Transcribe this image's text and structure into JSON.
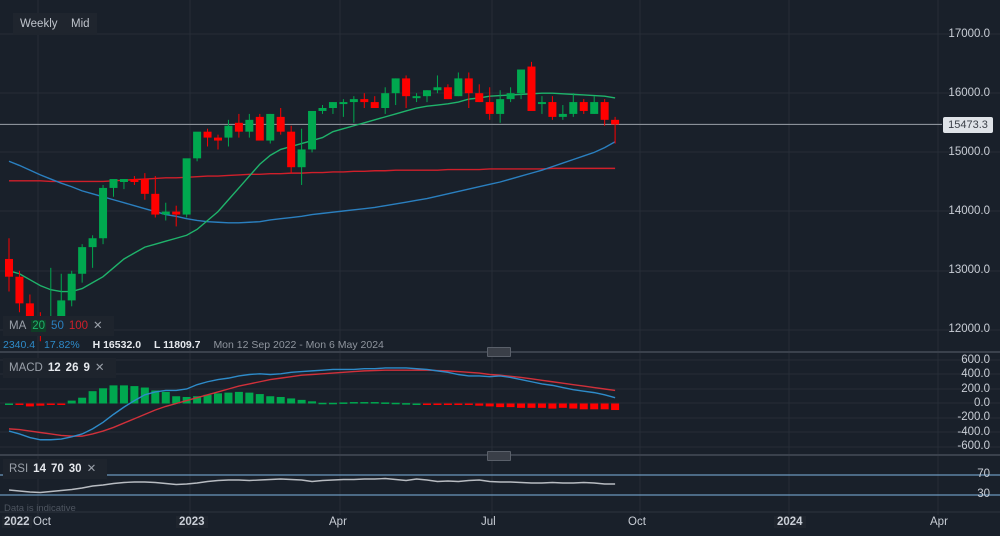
{
  "toolbar": {
    "interval": "Weekly",
    "price_type": "Mid"
  },
  "ma_legend": {
    "label": "MA",
    "p1": "20",
    "p2": "50",
    "p3": "100",
    "close": "✕"
  },
  "info_bar": {
    "change": "2340.4",
    "change_pct": "17.82%",
    "high": "H 16532.0",
    "low": "L 11809.7",
    "range": "Mon 12 Sep 2022 - Mon 6 May 2024"
  },
  "macd_legend": {
    "label": "MACD",
    "fast": "12",
    "slow": "26",
    "signal": "9",
    "close": "✕"
  },
  "rsi_legend": {
    "label": "RSI",
    "period": "14",
    "upper": "70",
    "lower": "30",
    "close": "✕"
  },
  "disclaimer": "Data is indicative",
  "last_price": "15473.3",
  "price_axis": [
    "17000.0",
    "16000.0",
    "15000.0",
    "14000.0",
    "13000.0",
    "12000.0"
  ],
  "macd_axis": [
    "600.0",
    "400.0",
    "200.0",
    "0.0",
    "-200.0",
    "-400.0",
    "-600.0"
  ],
  "rsi_axis": [
    "70",
    "30"
  ],
  "time_axis": [
    "2022",
    "Oct",
    "2023",
    "Apr",
    "Jul",
    "Oct",
    "2024",
    "Apr"
  ],
  "colors": {
    "bg": "#19202a",
    "up": "#00a84f",
    "down": "#ff0000",
    "ma20": "#1fb36b",
    "ma50": "#2a7fbf",
    "ma100": "#d01f2a",
    "macd": "#2e8bc9",
    "signal": "#d0303a",
    "rsi": "#b8bcc2",
    "rsi_band": "#7fb3e0"
  },
  "chart_data": {
    "type": "candlestick",
    "title": "Weekly Mid",
    "period": "Mon 12 Sep 2022 - Mon 6 May 2024",
    "ylim": [
      11800,
      17300
    ],
    "candles_ohlc": [
      [
        13200,
        13550,
        12650,
        12900
      ],
      [
        12900,
        13000,
        12300,
        12450
      ],
      [
        12450,
        12600,
        11950,
        12150
      ],
      [
        12150,
        12300,
        11810,
        12000
      ],
      [
        12000,
        13050,
        11900,
        12200
      ],
      [
        12200,
        12950,
        12000,
        12500
      ],
      [
        12500,
        13000,
        12400,
        12950
      ],
      [
        12950,
        13450,
        12800,
        13400
      ],
      [
        13400,
        13600,
        13050,
        13550
      ],
      [
        13550,
        14450,
        13450,
        14400
      ],
      [
        14400,
        14500,
        14250,
        14550
      ],
      [
        14500,
        14550,
        14380,
        14550
      ],
      [
        14550,
        14600,
        14450,
        14500
      ],
      [
        14550,
        14650,
        14200,
        14300
      ],
      [
        14300,
        14600,
        13900,
        13950
      ],
      [
        13950,
        14150,
        13850,
        14000
      ],
      [
        14000,
        14100,
        13750,
        13950
      ],
      [
        13950,
        14850,
        13900,
        14900
      ],
      [
        14900,
        15200,
        14850,
        15350
      ],
      [
        15350,
        15400,
        15100,
        15250
      ],
      [
        15250,
        15300,
        15050,
        15200
      ],
      [
        15250,
        15550,
        15100,
        15450
      ],
      [
        15500,
        15650,
        15250,
        15350
      ],
      [
        15350,
        15650,
        15250,
        15550
      ],
      [
        15600,
        15650,
        15300,
        15200
      ],
      [
        15200,
        15650,
        15150,
        15650
      ],
      [
        15600,
        15750,
        15300,
        15350
      ],
      [
        15350,
        15450,
        14650,
        14750
      ],
      [
        14750,
        15400,
        14450,
        15050
      ],
      [
        15050,
        15600,
        15000,
        15700
      ],
      [
        15700,
        15800,
        15650,
        15750
      ],
      [
        15750,
        15850,
        15650,
        15850
      ],
      [
        15850,
        15900,
        15600,
        15850
      ],
      [
        15850,
        15950,
        15500,
        15900
      ],
      [
        15900,
        16000,
        15750,
        15850
      ],
      [
        15850,
        15950,
        15750,
        15750
      ],
      [
        15750,
        16100,
        15650,
        16000
      ],
      [
        16000,
        16250,
        15800,
        16250
      ],
      [
        16250,
        16300,
        15750,
        15950
      ],
      [
        15950,
        16000,
        15850,
        15950
      ],
      [
        15950,
        16050,
        15850,
        16050
      ],
      [
        16050,
        16300,
        16000,
        16100
      ],
      [
        16100,
        16150,
        15900,
        15900
      ],
      [
        15950,
        16350,
        15950,
        16250
      ],
      [
        16250,
        16350,
        15750,
        16000
      ],
      [
        16000,
        16150,
        15850,
        15850
      ],
      [
        15850,
        16100,
        15550,
        15650
      ],
      [
        15650,
        16050,
        15500,
        15900
      ],
      [
        15900,
        16100,
        15850,
        16000
      ],
      [
        16000,
        16400,
        15900,
        16400
      ],
      [
        16450,
        16530,
        15800,
        15700
      ],
      [
        15850,
        15950,
        15650,
        15850
      ],
      [
        15850,
        15950,
        15550,
        15600
      ],
      [
        15600,
        15800,
        15550,
        15650
      ],
      [
        15650,
        16000,
        15600,
        15850
      ],
      [
        15850,
        15900,
        15650,
        15700
      ],
      [
        15650,
        15950,
        15650,
        15850
      ],
      [
        15850,
        15900,
        15450,
        15550
      ],
      [
        15550,
        15600,
        15150,
        15473.3
      ]
    ],
    "ma20_approx": [
      13000,
      12950,
      12850,
      12750,
      12680,
      12650,
      12650,
      12700,
      12800,
      12900,
      13050,
      13200,
      13300,
      13400,
      13450,
      13500,
      13550,
      13600,
      13700,
      13850,
      14000,
      14200,
      14400,
      14600,
      14800,
      14950,
      15050,
      15100,
      15150,
      15200,
      15250,
      15350,
      15400,
      15450,
      15500,
      15550,
      15600,
      15650,
      15700,
      15750,
      15780,
      15800,
      15820,
      15850,
      15900,
      15920,
      15950,
      15960,
      15970,
      15980,
      15990,
      16000,
      16000,
      15990,
      15980,
      15970,
      15960,
      15950,
      15920
    ],
    "ma50_approx": [
      14850,
      14780,
      14700,
      14620,
      14550,
      14480,
      14420,
      14350,
      14300,
      14250,
      14200,
      14150,
      14100,
      14050,
      14000,
      13950,
      13920,
      13880,
      13850,
      13830,
      13820,
      13810,
      13810,
      13820,
      13830,
      13860,
      13880,
      13900,
      13920,
      13950,
      13970,
      13990,
      14010,
      14030,
      14050,
      14070,
      14100,
      14130,
      14160,
      14190,
      14220,
      14260,
      14300,
      14340,
      14380,
      14420,
      14460,
      14500,
      14550,
      14600,
      14650,
      14700,
      14760,
      14820,
      14880,
      14940,
      15000,
      15080,
      15180
    ],
    "ma100_approx": [
      14520,
      14520,
      14520,
      14520,
      14510,
      14510,
      14510,
      14510,
      14510,
      14510,
      14520,
      14530,
      14540,
      14550,
      14560,
      14570,
      14570,
      14580,
      14590,
      14600,
      14600,
      14610,
      14620,
      14630,
      14630,
      14640,
      14640,
      14650,
      14650,
      14660,
      14660,
      14670,
      14670,
      14680,
      14680,
      14690,
      14690,
      14700,
      14700,
      14700,
      14700,
      14700,
      14710,
      14710,
      14710,
      14710,
      14720,
      14720,
      14720,
      14720,
      14720,
      14720,
      14730,
      14730,
      14730,
      14730,
      14730,
      14730,
      14730
    ],
    "macd": {
      "ylim": [
        -650,
        650
      ],
      "macd_line": [
        -380,
        -420,
        -470,
        -500,
        -500,
        -490,
        -460,
        -420,
        -350,
        -260,
        -150,
        -50,
        40,
        120,
        160,
        180,
        180,
        200,
        260,
        300,
        330,
        350,
        380,
        400,
        410,
        400,
        410,
        430,
        440,
        450,
        460,
        470,
        470,
        470,
        480,
        480,
        490,
        490,
        490,
        480,
        470,
        450,
        430,
        400,
        380,
        380,
        370,
        380,
        360,
        330,
        300,
        270,
        250,
        220,
        190,
        170,
        150,
        120,
        80
      ],
      "signal_line": [
        -350,
        -360,
        -380,
        -400,
        -420,
        -440,
        -450,
        -450,
        -420,
        -380,
        -330,
        -270,
        -210,
        -150,
        -90,
        -40,
        0,
        40,
        80,
        120,
        160,
        200,
        240,
        270,
        300,
        330,
        350,
        370,
        390,
        400,
        410,
        420,
        430,
        440,
        450,
        455,
        460,
        460,
        460,
        460,
        460,
        455,
        450,
        440,
        430,
        420,
        400,
        390,
        375,
        360,
        340,
        320,
        300,
        280,
        260,
        240,
        220,
        200,
        180
      ],
      "histogram": [
        0,
        -20,
        -40,
        -30,
        -20,
        -10,
        40,
        80,
        170,
        210,
        250,
        250,
        240,
        220,
        180,
        160,
        100,
        90,
        100,
        120,
        140,
        150,
        160,
        150,
        130,
        100,
        90,
        70,
        50,
        30,
        10,
        10,
        15,
        20,
        20,
        20,
        15,
        10,
        5,
        0,
        -5,
        -10,
        -15,
        -20,
        -20,
        -30,
        -40,
        -50,
        -50,
        -60,
        -60,
        -60,
        -70,
        -60,
        -70,
        -80,
        -80,
        -80,
        -90
      ],
      "xlabel": "",
      "ylabel": ""
    },
    "rsi": {
      "ylim": [
        20,
        80
      ],
      "levels": [
        70,
        30
      ],
      "values": [
        40,
        38,
        36,
        35,
        37,
        39,
        41,
        44,
        48,
        50,
        53,
        55,
        56,
        56,
        55,
        53,
        51,
        52,
        54,
        57,
        59,
        60,
        60,
        59,
        60,
        61,
        62,
        61,
        60,
        57,
        59,
        60,
        61,
        61,
        62,
        62,
        63,
        61,
        59,
        62,
        60,
        57,
        58,
        57,
        59,
        60,
        57,
        56,
        56,
        55,
        54,
        54,
        55,
        54,
        54,
        55,
        54,
        52,
        52
      ]
    }
  }
}
